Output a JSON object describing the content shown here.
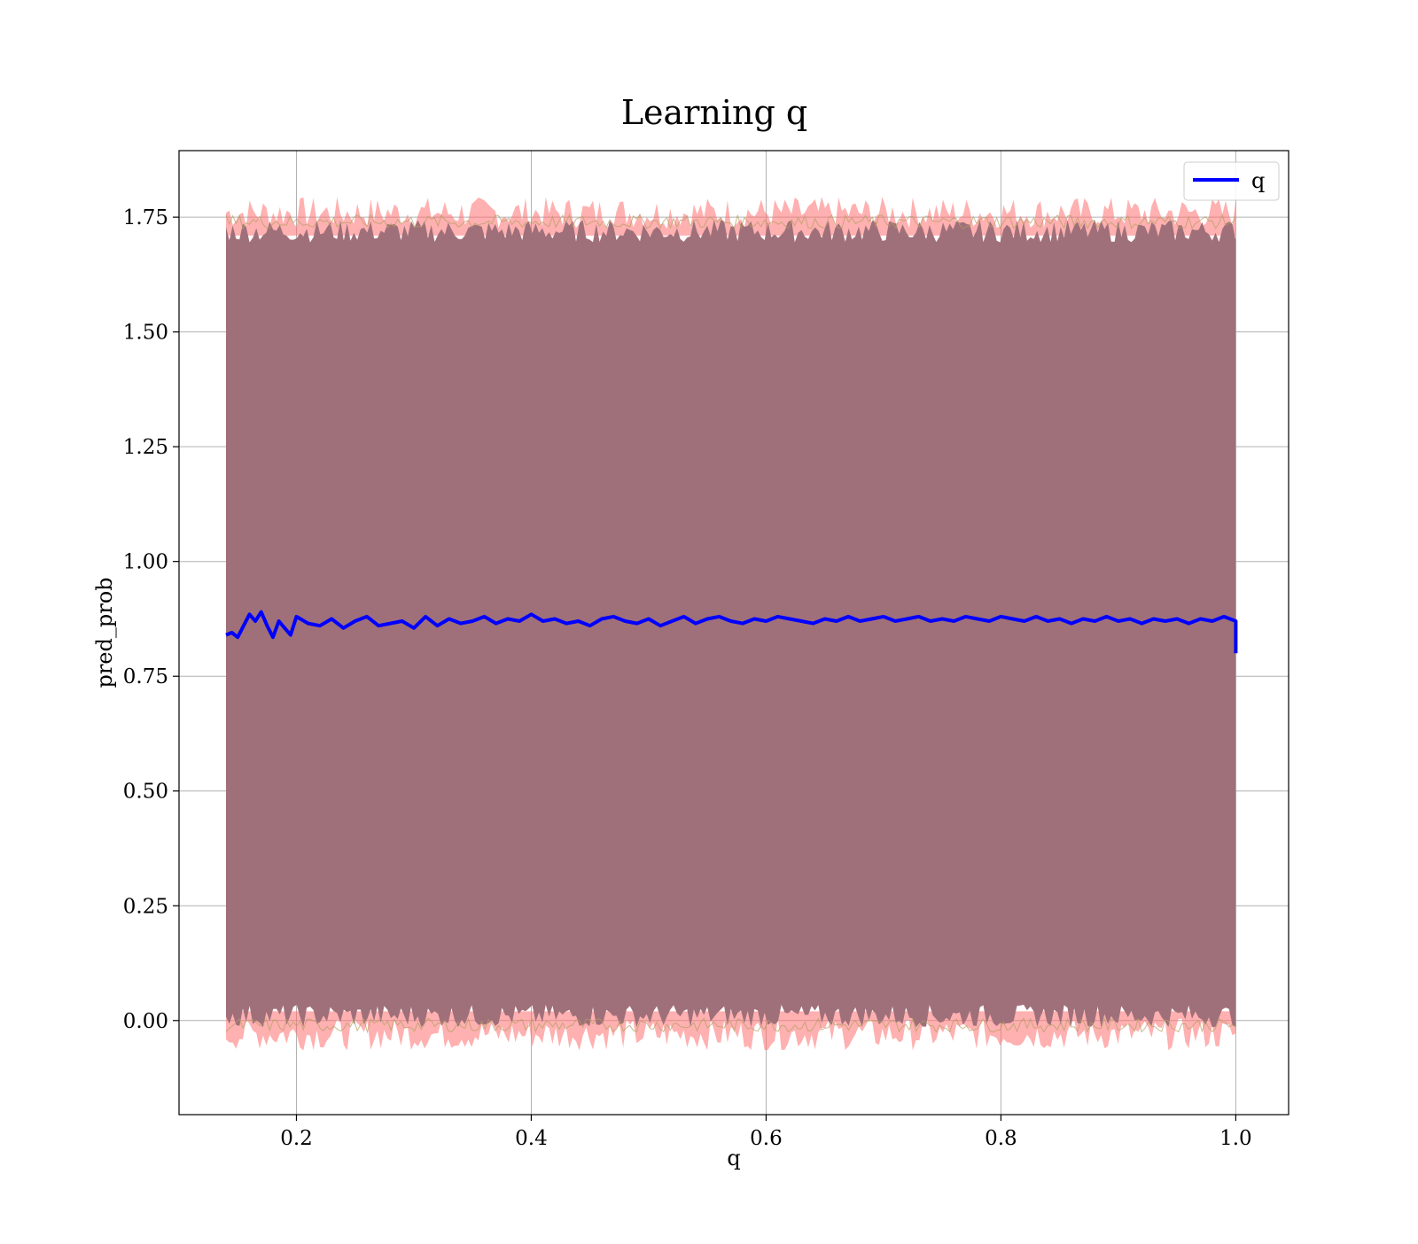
{
  "chart_data": {
    "type": "line",
    "title": "Learning q",
    "xlabel": "q",
    "ylabel": "pred_prob",
    "xlim": [
      0.1,
      1.045
    ],
    "ylim": [
      -0.205,
      1.895
    ],
    "x_ticks": [
      0.2,
      0.4,
      0.6,
      0.8,
      1.0
    ],
    "x_tick_labels": [
      "0.2",
      "0.4",
      "0.6",
      "0.8",
      "1.0"
    ],
    "y_ticks": [
      0.0,
      0.25,
      0.5,
      0.75,
      1.0,
      1.25,
      1.5,
      1.75
    ],
    "y_tick_labels": [
      "0.00",
      "0.25",
      "0.50",
      "0.75",
      "1.00",
      "1.25",
      "1.50",
      "1.75"
    ],
    "grid": true,
    "legend": {
      "position": "top-right",
      "entries": [
        "q"
      ]
    },
    "colors": {
      "line": "#0000ff",
      "band_inner": "#a0707a",
      "band_edge_red": "#ff6f6f",
      "band_edge_olive": "#b0a060"
    },
    "series": [
      {
        "name": "q",
        "x": [
          0.14,
          0.145,
          0.15,
          0.155,
          0.16,
          0.165,
          0.17,
          0.175,
          0.18,
          0.185,
          0.19,
          0.195,
          0.2,
          0.21,
          0.22,
          0.23,
          0.24,
          0.25,
          0.26,
          0.27,
          0.28,
          0.29,
          0.3,
          0.31,
          0.32,
          0.33,
          0.34,
          0.35,
          0.36,
          0.37,
          0.38,
          0.39,
          0.4,
          0.41,
          0.42,
          0.43,
          0.44,
          0.45,
          0.46,
          0.47,
          0.48,
          0.49,
          0.5,
          0.51,
          0.52,
          0.53,
          0.54,
          0.55,
          0.56,
          0.57,
          0.58,
          0.59,
          0.6,
          0.61,
          0.62,
          0.63,
          0.64,
          0.65,
          0.66,
          0.67,
          0.68,
          0.69,
          0.7,
          0.71,
          0.72,
          0.73,
          0.74,
          0.75,
          0.76,
          0.77,
          0.78,
          0.79,
          0.8,
          0.81,
          0.82,
          0.83,
          0.84,
          0.85,
          0.86,
          0.87,
          0.88,
          0.89,
          0.9,
          0.91,
          0.92,
          0.93,
          0.94,
          0.95,
          0.96,
          0.97,
          0.98,
          0.99,
          1.0,
          1.0
        ],
        "values": [
          0.84,
          0.845,
          0.835,
          0.86,
          0.885,
          0.87,
          0.89,
          0.86,
          0.835,
          0.87,
          0.855,
          0.84,
          0.88,
          0.865,
          0.86,
          0.875,
          0.855,
          0.87,
          0.88,
          0.86,
          0.865,
          0.87,
          0.855,
          0.88,
          0.86,
          0.875,
          0.865,
          0.87,
          0.88,
          0.865,
          0.875,
          0.87,
          0.885,
          0.87,
          0.875,
          0.865,
          0.87,
          0.86,
          0.875,
          0.88,
          0.87,
          0.865,
          0.875,
          0.86,
          0.87,
          0.88,
          0.865,
          0.875,
          0.88,
          0.87,
          0.865,
          0.875,
          0.87,
          0.88,
          0.875,
          0.87,
          0.865,
          0.875,
          0.87,
          0.88,
          0.87,
          0.875,
          0.88,
          0.87,
          0.875,
          0.88,
          0.87,
          0.875,
          0.87,
          0.88,
          0.875,
          0.87,
          0.88,
          0.875,
          0.87,
          0.88,
          0.87,
          0.875,
          0.865,
          0.875,
          0.87,
          0.88,
          0.87,
          0.875,
          0.865,
          0.875,
          0.87,
          0.875,
          0.865,
          0.875,
          0.87,
          0.88,
          0.87,
          0.8
        ]
      }
    ],
    "band": {
      "x": [
        0.14,
        1.0
      ],
      "upper": 1.74,
      "lower": -0.01
    }
  }
}
